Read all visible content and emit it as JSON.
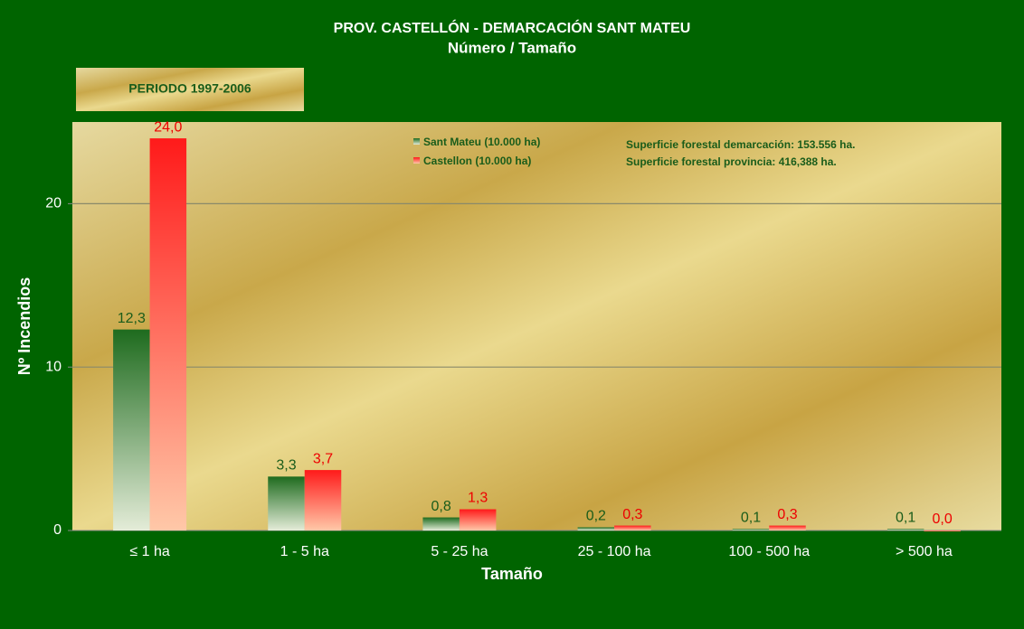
{
  "chart_data": {
    "type": "bar",
    "title": "PROV. CASTELLÓN  - DEMARCACIÓN  SANT MATEU",
    "subtitle": "Número / Tamaño",
    "period": "PERIODO 1997-2006",
    "annotations": [
      "Superficie forestal  demarcación:  153.556  ha.",
      "Superficie forestal  provincia: 416,388  ha."
    ],
    "x_label": "Tamaño",
    "y_label": "Nº Incendios",
    "categories": [
      "≤ 1 ha",
      "1 - 5 ha",
      "5 - 25 ha",
      "25 - 100 ha",
      "100 - 500 ha",
      "> 500 ha"
    ],
    "series": [
      {
        "name": "Sant Mateu (10.000  ha)",
        "color": "#1e6b1e",
        "values": [
          12.3,
          3.3,
          0.8,
          0.2,
          0.1,
          0.1
        ],
        "value_labels": [
          "12,3",
          "3,3",
          "0,8",
          "0,2",
          "0,1",
          "0,1"
        ]
      },
      {
        "name": "Castellon (10.000  ha)",
        "color": "#ff1a1a",
        "values": [
          24.0,
          3.7,
          1.3,
          0.3,
          0.3,
          0.0
        ],
        "value_labels": [
          "24,0",
          "3,7",
          "1,3",
          "0,3",
          "0,3",
          "0,0"
        ]
      }
    ],
    "ylim": [
      0,
      25
    ],
    "yticks": [
      0,
      10,
      20
    ],
    "grid": true
  }
}
